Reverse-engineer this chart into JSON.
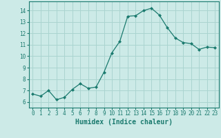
{
  "x": [
    0,
    1,
    2,
    3,
    4,
    5,
    6,
    7,
    8,
    9,
    10,
    11,
    12,
    13,
    14,
    15,
    16,
    17,
    18,
    19,
    20,
    21,
    22,
    23
  ],
  "y": [
    6.7,
    6.5,
    7.0,
    6.2,
    6.4,
    7.1,
    7.6,
    7.2,
    7.3,
    8.6,
    10.3,
    11.3,
    13.5,
    13.55,
    14.0,
    14.2,
    13.6,
    12.5,
    11.6,
    11.2,
    11.1,
    10.6,
    10.8,
    10.75
  ],
  "line_color": "#1a7a6e",
  "marker": "D",
  "marker_size": 2.0,
  "bg_color": "#cceae7",
  "grid_color": "#aad4d0",
  "xlabel": "Humidex (Indice chaleur)",
  "ylabel_ticks": [
    6,
    7,
    8,
    9,
    10,
    11,
    12,
    13,
    14
  ],
  "xlim": [
    -0.5,
    23.5
  ],
  "ylim": [
    5.5,
    14.8
  ],
  "spine_color": "#1a7a6e",
  "tick_color": "#1a7a6e",
  "label_color": "#1a7a6e",
  "tick_fontsize": 5.5,
  "xlabel_fontsize": 7.0,
  "linewidth": 0.9
}
